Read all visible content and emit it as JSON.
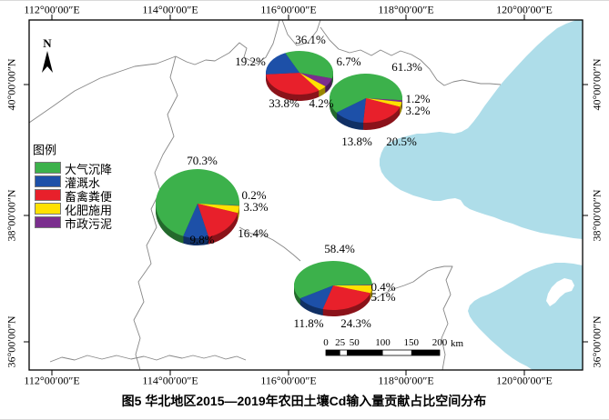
{
  "figure": {
    "caption": "图5 华北地区2015—2019年农田土壤Cd输入量贡献占比空间分布"
  },
  "map": {
    "top_axis": [
      "112°00′00″E",
      "114°00′00″E",
      "116°00′00″E",
      "118°00′00″E",
      "120°00′00″E"
    ],
    "bottom_axis": [
      "112°00′00″E",
      "114°00′00″E",
      "116°00′00″E",
      "118°00′00″E",
      "120°00′00″E"
    ],
    "left_axis": [
      "40°00′00″N",
      "38°00′00″N",
      "36°00′00″N"
    ],
    "right_axis": [
      "40°00′00″N",
      "38°00′00″N",
      "36°00′00″N"
    ],
    "north_label": "N",
    "sea_color": "#aedde9",
    "boundary_color": "#878787",
    "frame_color": "#000000"
  },
  "legend": {
    "title": "图例",
    "items": [
      {
        "label": "大气沉降",
        "color": "#3cb14b"
      },
      {
        "label": "灌溉水",
        "color": "#1d50a8"
      },
      {
        "label": "畜禽粪便",
        "color": "#e8202b"
      },
      {
        "label": "化肥施用",
        "color": "#ffe100"
      },
      {
        "label": "市政污泥",
        "color": "#7b2e8e"
      }
    ]
  },
  "scalebar": {
    "labels": [
      "0",
      "25",
      "50",
      "100",
      "150",
      "200"
    ],
    "unit": "km"
  },
  "chart_data": [
    {
      "type": "pie",
      "title": "北部（京津冀北部）饼图",
      "categories": [
        "大气沉降",
        "灌溉水",
        "畜禽粪便",
        "化肥施用",
        "市政污泥"
      ],
      "values": [
        36.1,
        19.2,
        33.8,
        4.2,
        6.7
      ]
    },
    {
      "type": "pie",
      "title": "京津（东北部）饼图",
      "categories": [
        "大气沉降",
        "灌溉水",
        "畜禽粪便",
        "化肥施用",
        "市政污泥"
      ],
      "values": [
        61.3,
        13.8,
        20.5,
        3.2,
        1.2
      ]
    },
    {
      "type": "pie",
      "title": "西部（山西）饼图",
      "categories": [
        "大气沉降",
        "灌溉水",
        "畜禽粪便",
        "化肥施用",
        "市政污泥"
      ],
      "values": [
        70.3,
        9.8,
        16.4,
        3.3,
        0.2
      ]
    },
    {
      "type": "pie",
      "title": "南部（山东）饼图",
      "categories": [
        "大气沉降",
        "灌溉水",
        "畜禽粪便",
        "化肥施用",
        "市政污泥"
      ],
      "values": [
        58.4,
        11.8,
        24.3,
        5.1,
        0.4
      ]
    }
  ]
}
